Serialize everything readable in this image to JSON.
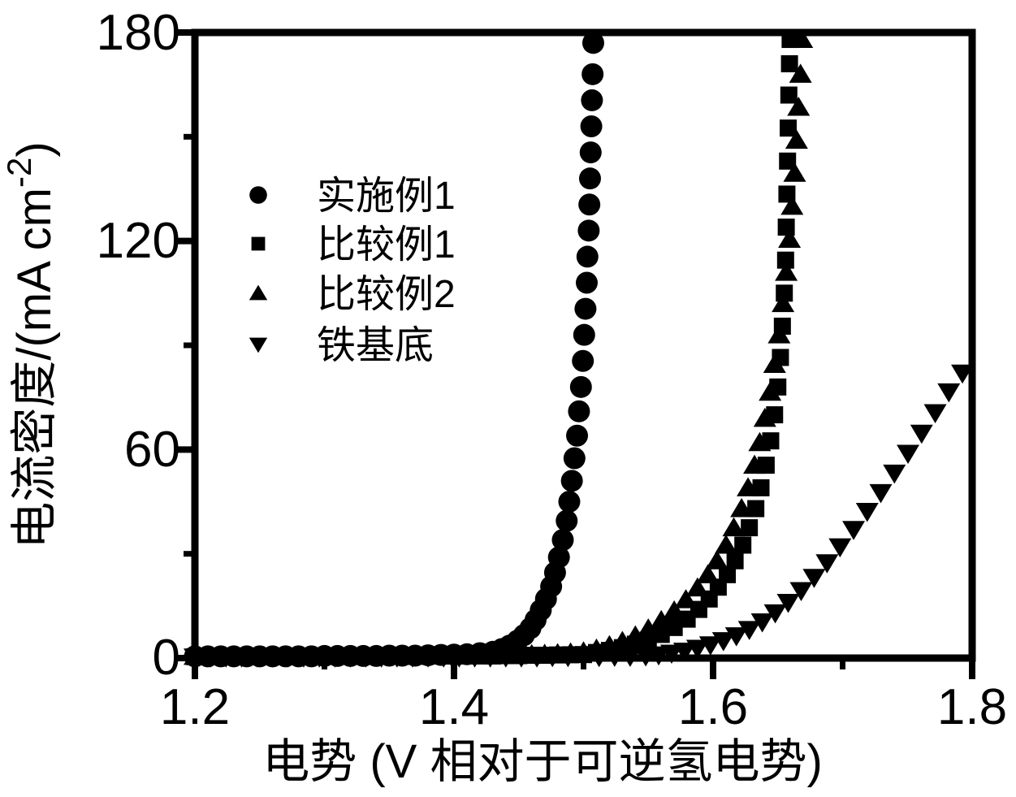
{
  "figure": {
    "background_color": "#ffffff",
    "ink_color": "#000000"
  },
  "axes": {
    "x": {
      "label": "电势  (V 相对于可逆氢电势)",
      "min": 1.2,
      "max": 1.8,
      "major_ticks": [
        {
          "v": 1.2,
          "label": "1.2"
        },
        {
          "v": 1.4,
          "label": "1.4"
        },
        {
          "v": 1.6,
          "label": "1.6"
        },
        {
          "v": 1.8,
          "label": "1.8"
        }
      ],
      "minor_ticks": [
        1.3,
        1.5,
        1.7
      ]
    },
    "y": {
      "label_prefix": "电流密度/(mA cm",
      "label_sup": "-2",
      "label_suffix": ")",
      "min": 0,
      "max": 180,
      "major_ticks": [
        {
          "v": 0,
          "label": "0"
        },
        {
          "v": 60,
          "label": "60"
        },
        {
          "v": 120,
          "label": "120"
        },
        {
          "v": 180,
          "label": "180"
        }
      ],
      "minor_ticks": [
        30,
        90,
        150
      ]
    }
  },
  "chart_data": {
    "type": "scatter",
    "title": "",
    "xlabel": "电势 (V 相对于可逆氢电势)",
    "ylabel": "电流密度/(mA cm⁻²)",
    "xlim": [
      1.2,
      1.8
    ],
    "ylim": [
      0,
      180
    ],
    "grid": false,
    "legend_position": "upper-left-inside",
    "series": [
      {
        "name": "实施例1",
        "marker": "circle",
        "points": [
          [
            1.2,
            0.5
          ],
          [
            1.21,
            0.5
          ],
          [
            1.22,
            0.5
          ],
          [
            1.23,
            0.5
          ],
          [
            1.24,
            0.5
          ],
          [
            1.25,
            0.5
          ],
          [
            1.26,
            0.5
          ],
          [
            1.27,
            0.5
          ],
          [
            1.28,
            0.5
          ],
          [
            1.29,
            0.5
          ],
          [
            1.3,
            0.6
          ],
          [
            1.31,
            0.6
          ],
          [
            1.32,
            0.6
          ],
          [
            1.33,
            0.6
          ],
          [
            1.34,
            0.6
          ],
          [
            1.35,
            0.7
          ],
          [
            1.36,
            0.7
          ],
          [
            1.37,
            0.7
          ],
          [
            1.38,
            0.8
          ],
          [
            1.39,
            0.9
          ],
          [
            1.4,
            1.0
          ],
          [
            1.41,
            1.1
          ],
          [
            1.42,
            1.4
          ],
          [
            1.43,
            1.8
          ],
          [
            1.437,
            2.6
          ],
          [
            1.443,
            3.6
          ],
          [
            1.449,
            5.0
          ],
          [
            1.454,
            6.6
          ],
          [
            1.459,
            8.6
          ],
          [
            1.463,
            11.0
          ],
          [
            1.467,
            13.8
          ],
          [
            1.471,
            17.0
          ],
          [
            1.475,
            20.6
          ],
          [
            1.478,
            24.6
          ],
          [
            1.481,
            29.0
          ],
          [
            1.484,
            34.0
          ],
          [
            1.487,
            39.5
          ],
          [
            1.489,
            45.0
          ],
          [
            1.491,
            51.0
          ],
          [
            1.493,
            57.5
          ],
          [
            1.495,
            64.0
          ],
          [
            1.4965,
            71.0
          ],
          [
            1.498,
            78.0
          ],
          [
            1.4995,
            85.5
          ],
          [
            1.5005,
            93.0
          ],
          [
            1.5015,
            100.5
          ],
          [
            1.5025,
            108.0
          ],
          [
            1.503,
            115.5
          ],
          [
            1.504,
            123.0
          ],
          [
            1.5045,
            130.5
          ],
          [
            1.505,
            138.0
          ],
          [
            1.5055,
            145.5
          ],
          [
            1.506,
            153.0
          ],
          [
            1.5065,
            160.5
          ],
          [
            1.507,
            168.0
          ],
          [
            1.5075,
            177.0
          ]
        ]
      },
      {
        "name": "比较例1",
        "marker": "square",
        "points": [
          [
            1.2,
            0.4
          ],
          [
            1.21,
            0.4
          ],
          [
            1.22,
            0.4
          ],
          [
            1.23,
            0.4
          ],
          [
            1.24,
            0.4
          ],
          [
            1.25,
            0.4
          ],
          [
            1.26,
            0.4
          ],
          [
            1.27,
            0.4
          ],
          [
            1.28,
            0.4
          ],
          [
            1.29,
            0.4
          ],
          [
            1.3,
            0.5
          ],
          [
            1.31,
            0.5
          ],
          [
            1.32,
            0.5
          ],
          [
            1.33,
            0.5
          ],
          [
            1.34,
            0.5
          ],
          [
            1.35,
            0.5
          ],
          [
            1.36,
            0.5
          ],
          [
            1.37,
            0.5
          ],
          [
            1.38,
            0.6
          ],
          [
            1.39,
            0.6
          ],
          [
            1.4,
            0.6
          ],
          [
            1.41,
            0.6
          ],
          [
            1.42,
            0.6
          ],
          [
            1.43,
            0.6
          ],
          [
            1.44,
            0.7
          ],
          [
            1.45,
            0.7
          ],
          [
            1.46,
            0.8
          ],
          [
            1.47,
            0.8
          ],
          [
            1.48,
            0.9
          ],
          [
            1.49,
            0.95
          ],
          [
            1.5,
            1.0
          ],
          [
            1.51,
            1.6
          ],
          [
            1.52,
            2.2
          ],
          [
            1.53,
            3.0
          ],
          [
            1.54,
            4.0
          ],
          [
            1.55,
            5.2
          ],
          [
            1.56,
            6.8
          ],
          [
            1.57,
            8.8
          ],
          [
            1.58,
            11.2
          ],
          [
            1.589,
            14.0
          ],
          [
            1.597,
            17.0
          ],
          [
            1.604,
            20.4
          ],
          [
            1.611,
            24.0
          ],
          [
            1.617,
            28.0
          ],
          [
            1.623,
            32.5
          ],
          [
            1.628,
            37.5
          ],
          [
            1.633,
            43.0
          ],
          [
            1.637,
            49.0
          ],
          [
            1.641,
            55.5
          ],
          [
            1.6445,
            62.5
          ],
          [
            1.6475,
            70.0
          ],
          [
            1.65,
            78.0
          ],
          [
            1.652,
            86.5
          ],
          [
            1.6535,
            95.5
          ],
          [
            1.655,
            105.0
          ],
          [
            1.656,
            114.5
          ],
          [
            1.6565,
            124.0
          ],
          [
            1.657,
            133.5
          ],
          [
            1.6575,
            143.0
          ],
          [
            1.658,
            152.5
          ],
          [
            1.6585,
            162.0
          ],
          [
            1.659,
            171.0
          ],
          [
            1.6595,
            178.0
          ]
        ]
      },
      {
        "name": "比较例2",
        "marker": "triangle-up",
        "points": [
          [
            1.2,
            0.5
          ],
          [
            1.21,
            0.5
          ],
          [
            1.22,
            0.5
          ],
          [
            1.23,
            0.5
          ],
          [
            1.24,
            0.5
          ],
          [
            1.25,
            0.5
          ],
          [
            1.26,
            0.5
          ],
          [
            1.27,
            0.5
          ],
          [
            1.28,
            0.5
          ],
          [
            1.29,
            0.5
          ],
          [
            1.3,
            0.6
          ],
          [
            1.31,
            0.6
          ],
          [
            1.32,
            0.6
          ],
          [
            1.33,
            0.6
          ],
          [
            1.34,
            0.6
          ],
          [
            1.35,
            0.6
          ],
          [
            1.36,
            0.6
          ],
          [
            1.37,
            0.6
          ],
          [
            1.38,
            0.7
          ],
          [
            1.39,
            0.7
          ],
          [
            1.4,
            0.7
          ],
          [
            1.41,
            0.7
          ],
          [
            1.42,
            0.7
          ],
          [
            1.43,
            0.7
          ],
          [
            1.44,
            0.8
          ],
          [
            1.45,
            0.9
          ],
          [
            1.46,
            1.0
          ],
          [
            1.47,
            1.1
          ],
          [
            1.48,
            1.3
          ],
          [
            1.49,
            1.5
          ],
          [
            1.5,
            1.8
          ],
          [
            1.51,
            2.6
          ],
          [
            1.52,
            3.6
          ],
          [
            1.53,
            4.8
          ],
          [
            1.54,
            6.4
          ],
          [
            1.55,
            8.4
          ],
          [
            1.56,
            10.8
          ],
          [
            1.57,
            13.6
          ],
          [
            1.579,
            16.8
          ],
          [
            1.588,
            20.2
          ],
          [
            1.596,
            24.0
          ],
          [
            1.603,
            28.0
          ],
          [
            1.61,
            32.5
          ],
          [
            1.616,
            37.5
          ],
          [
            1.622,
            43.0
          ],
          [
            1.627,
            49.0
          ],
          [
            1.632,
            55.5
          ],
          [
            1.636,
            62.0
          ],
          [
            1.64,
            69.0
          ],
          [
            1.644,
            76.5
          ],
          [
            1.6475,
            84.5
          ],
          [
            1.651,
            93.0
          ],
          [
            1.654,
            102.0
          ],
          [
            1.6565,
            111.0
          ],
          [
            1.659,
            120.5
          ],
          [
            1.661,
            130.0
          ],
          [
            1.663,
            139.5
          ],
          [
            1.6645,
            149.0
          ],
          [
            1.666,
            158.5
          ],
          [
            1.6675,
            168.0
          ],
          [
            1.6685,
            178.0
          ]
        ]
      },
      {
        "name": "铁基底",
        "marker": "triangle-down",
        "points": [
          [
            1.2,
            0.3
          ],
          [
            1.212,
            0.3
          ],
          [
            1.224,
            0.3
          ],
          [
            1.236,
            0.3
          ],
          [
            1.248,
            0.3
          ],
          [
            1.26,
            0.3
          ],
          [
            1.272,
            0.3
          ],
          [
            1.284,
            0.3
          ],
          [
            1.296,
            0.3
          ],
          [
            1.308,
            0.3
          ],
          [
            1.32,
            0.3
          ],
          [
            1.332,
            0.3
          ],
          [
            1.344,
            0.3
          ],
          [
            1.356,
            0.3
          ],
          [
            1.368,
            0.3
          ],
          [
            1.38,
            0.3
          ],
          [
            1.392,
            0.3
          ],
          [
            1.404,
            0.3
          ],
          [
            1.416,
            0.3
          ],
          [
            1.428,
            0.3
          ],
          [
            1.44,
            0.3
          ],
          [
            1.452,
            0.3
          ],
          [
            1.464,
            0.3
          ],
          [
            1.476,
            0.4
          ],
          [
            1.488,
            0.4
          ],
          [
            1.5,
            0.4
          ],
          [
            1.512,
            0.4
          ],
          [
            1.524,
            0.5
          ],
          [
            1.536,
            0.5
          ],
          [
            1.548,
            0.6
          ],
          [
            1.558,
            0.9
          ],
          [
            1.568,
            1.4
          ],
          [
            1.578,
            2.0
          ],
          [
            1.588,
            2.8
          ],
          [
            1.598,
            3.8
          ],
          [
            1.608,
            5.0
          ],
          [
            1.618,
            6.4
          ],
          [
            1.628,
            8.2
          ],
          [
            1.638,
            10.4
          ],
          [
            1.648,
            13.0
          ],
          [
            1.658,
            16.0
          ],
          [
            1.668,
            19.4
          ],
          [
            1.678,
            23.2
          ],
          [
            1.688,
            27.4
          ],
          [
            1.698,
            32.0
          ],
          [
            1.7085,
            37.0
          ],
          [
            1.719,
            42.2
          ],
          [
            1.7295,
            47.6
          ],
          [
            1.74,
            53.2
          ],
          [
            1.7505,
            58.9
          ],
          [
            1.761,
            64.7
          ],
          [
            1.7715,
            70.6
          ],
          [
            1.782,
            76.6
          ],
          [
            1.7925,
            82.0
          ]
        ]
      }
    ]
  }
}
